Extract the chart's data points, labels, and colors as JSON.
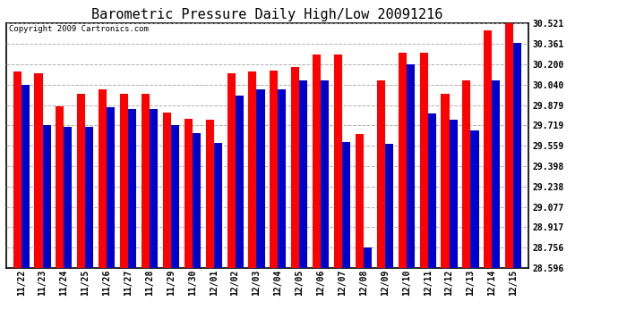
{
  "title": "Barometric Pressure Daily High/Low 20091216",
  "copyright": "Copyright 2009 Cartronics.com",
  "categories": [
    "11/22",
    "11/23",
    "11/24",
    "11/25",
    "11/26",
    "11/27",
    "11/28",
    "11/29",
    "11/30",
    "12/01",
    "12/02",
    "12/03",
    "12/04",
    "12/05",
    "12/06",
    "12/07",
    "12/08",
    "12/09",
    "12/10",
    "12/11",
    "12/12",
    "12/13",
    "12/14",
    "12/15"
  ],
  "highs": [
    30.14,
    30.13,
    29.87,
    29.97,
    30.0,
    29.97,
    29.97,
    29.82,
    29.77,
    29.76,
    30.13,
    30.14,
    30.15,
    30.18,
    30.28,
    30.28,
    29.65,
    30.07,
    30.29,
    30.29,
    29.97,
    30.07,
    30.47,
    30.52
  ],
  "lows": [
    30.04,
    29.72,
    29.71,
    29.71,
    29.86,
    29.85,
    29.85,
    29.72,
    29.66,
    29.58,
    29.95,
    30.0,
    30.0,
    30.07,
    30.07,
    29.59,
    28.76,
    29.57,
    30.2,
    29.81,
    29.76,
    29.68,
    30.07,
    30.37
  ],
  "high_color": "#ff0000",
  "low_color": "#0000cc",
  "bg_color": "#ffffff",
  "plot_bg_color": "#ffffff",
  "grid_color": "#b0b0b0",
  "yticks": [
    28.596,
    28.756,
    28.917,
    29.077,
    29.238,
    29.398,
    29.559,
    29.719,
    29.879,
    30.04,
    30.2,
    30.361,
    30.521
  ],
  "ymin": 28.596,
  "ymax": 30.521,
  "bar_width": 0.38,
  "title_fontsize": 11,
  "tick_fontsize": 7,
  "copyright_fontsize": 6.5
}
